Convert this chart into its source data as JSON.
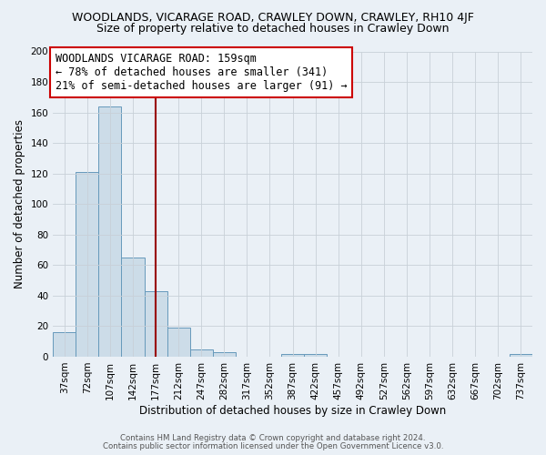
{
  "title": "WOODLANDS, VICARAGE ROAD, CRAWLEY DOWN, CRAWLEY, RH10 4JF",
  "subtitle": "Size of property relative to detached houses in Crawley Down",
  "xlabel": "Distribution of detached houses by size in Crawley Down",
  "ylabel": "Number of detached properties",
  "bar_labels": [
    "37sqm",
    "72sqm",
    "107sqm",
    "142sqm",
    "177sqm",
    "212sqm",
    "247sqm",
    "282sqm",
    "317sqm",
    "352sqm",
    "387sqm",
    "422sqm",
    "457sqm",
    "492sqm",
    "527sqm",
    "562sqm",
    "597sqm",
    "632sqm",
    "667sqm",
    "702sqm",
    "737sqm"
  ],
  "bar_values": [
    16,
    121,
    164,
    65,
    43,
    19,
    5,
    3,
    0,
    0,
    2,
    2,
    0,
    0,
    0,
    0,
    0,
    0,
    0,
    0,
    2
  ],
  "bar_color": "#ccdce8",
  "bar_edge_color": "#6699bb",
  "ylim": [
    0,
    200
  ],
  "yticks": [
    0,
    20,
    40,
    60,
    80,
    100,
    120,
    140,
    160,
    180,
    200
  ],
  "vline_color": "#990000",
  "annotation_line1": "WOODLANDS VICARAGE ROAD: 159sqm",
  "annotation_line2": "← 78% of detached houses are smaller (341)",
  "annotation_line3": "21% of semi-detached houses are larger (91) →",
  "annotation_box_color": "#ffffff",
  "annotation_box_edge_color": "#cc0000",
  "footer1": "Contains HM Land Registry data © Crown copyright and database right 2024.",
  "footer2": "Contains public sector information licensed under the Open Government Licence v3.0.",
  "bg_color": "#eaf0f6",
  "grid_color": "#c8d0d8",
  "title_fontsize": 9,
  "subtitle_fontsize": 9,
  "annot_fontsize": 8.5,
  "axis_fontsize": 8,
  "tick_fontsize": 7.5,
  "xlabel_fontsize": 8.5,
  "ylabel_fontsize": 8.5
}
